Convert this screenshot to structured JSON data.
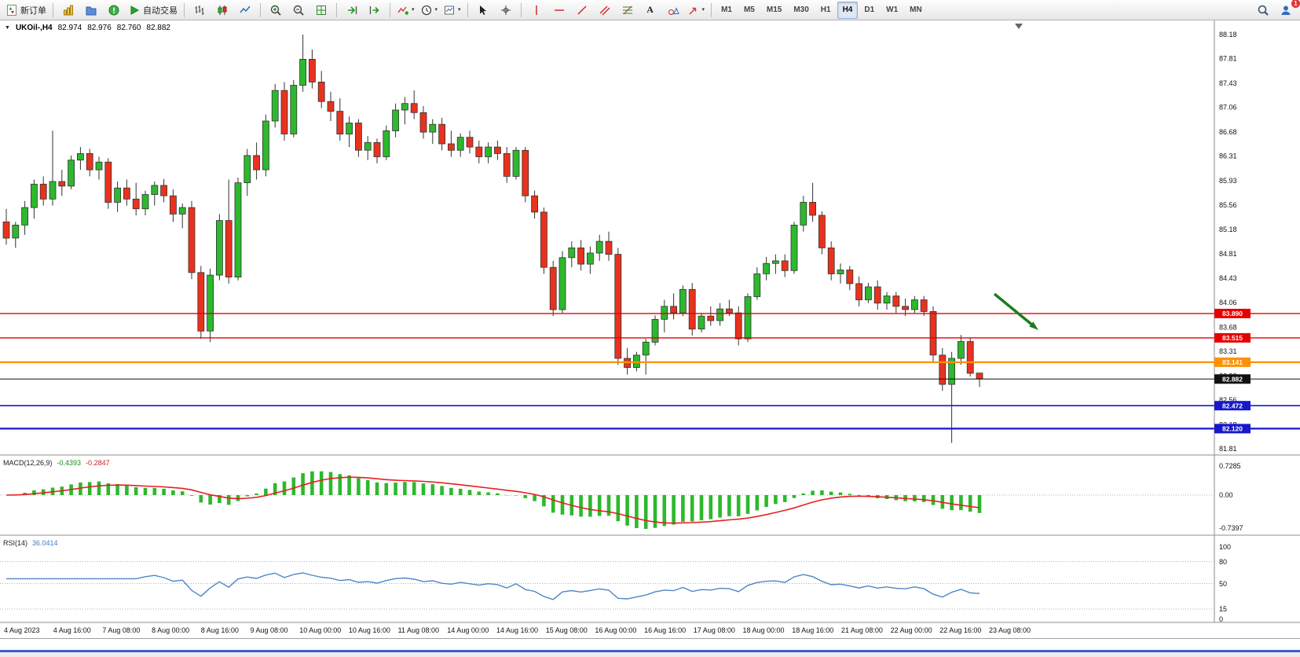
{
  "toolbar": {
    "groups": [
      {
        "items": [
          {
            "name": "new-order-button",
            "icon": "new-order-icon",
            "label": "新订单"
          }
        ]
      },
      {
        "items": [
          {
            "name": "market-watch-button",
            "icon": "market-watch-icon"
          },
          {
            "name": "navigator-button",
            "icon": "navigator-icon"
          },
          {
            "name": "terminal-button",
            "icon": "terminal-icon"
          },
          {
            "name": "auto-trading-button",
            "icon": "autotrade-play-icon",
            "label": "自动交易"
          }
        ]
      },
      {
        "items": [
          {
            "name": "bar-chart-button",
            "icon": "ohlc-bars-icon"
          },
          {
            "name": "candlestick-chart-button",
            "icon": "candlesticks-icon"
          },
          {
            "name": "line-chart-button",
            "icon": "line-chart-icon"
          }
        ]
      },
      {
        "items": [
          {
            "name": "zoom-in-button",
            "icon": "zoom-in-icon"
          },
          {
            "name": "zoom-out-button",
            "icon": "zoom-out-icon"
          },
          {
            "name": "tile-windows-button",
            "icon": "tile-windows-icon"
          }
        ]
      },
      {
        "items": [
          {
            "name": "auto-scroll-button",
            "icon": "auto-scroll-icon"
          },
          {
            "name": "chart-shift-button",
            "icon": "chart-shift-icon"
          }
        ]
      },
      {
        "items": [
          {
            "name": "indicators-button",
            "icon": "add-indicator-icon",
            "dropdown": true
          },
          {
            "name": "periods-button",
            "icon": "clock-icon",
            "dropdown": true
          },
          {
            "name": "templates-button",
            "icon": "template-icon",
            "dropdown": true
          }
        ]
      },
      {
        "items": [
          {
            "name": "cursor-button",
            "icon": "cursor-icon"
          },
          {
            "name": "crosshair-button",
            "icon": "crosshair-icon"
          }
        ]
      },
      {
        "items": [
          {
            "name": "vertical-line-button",
            "icon": "vertical-line-icon"
          },
          {
            "name": "horizontal-line-button",
            "icon": "horizontal-line-icon"
          },
          {
            "name": "trendline-button",
            "icon": "trendline-icon"
          },
          {
            "name": "channel-button",
            "icon": "channel-icon"
          },
          {
            "name": "fibonacci-button",
            "icon": "fibonacci-icon"
          },
          {
            "name": "text-button",
            "glyph": "A"
          },
          {
            "name": "shapes-button",
            "icon": "shapes-icon"
          },
          {
            "name": "arrows-button",
            "icon": "arrow-draw-icon",
            "dropdown": true
          }
        ]
      }
    ],
    "timeframes": {
      "items": [
        "M1",
        "M5",
        "M15",
        "M30",
        "H1",
        "H4",
        "D1",
        "W1",
        "MN"
      ],
      "active": "H4"
    },
    "right_items": [
      {
        "name": "search-button",
        "icon": "search-icon"
      },
      {
        "name": "account-button",
        "icon": "account-icon",
        "badge": "1"
      }
    ]
  },
  "chart": {
    "header": {
      "dropdown_glyph": "▼",
      "symbol": "UKOil-,H4",
      "open": "82.974",
      "high": "82.976",
      "low": "82.760",
      "close": "82.882"
    },
    "price_axis": [
      "88.18",
      "87.81",
      "87.43",
      "87.06",
      "86.68",
      "86.31",
      "85.93",
      "85.56",
      "85.18",
      "84.81",
      "84.43",
      "84.06",
      "83.68",
      "83.31",
      "82.93",
      "82.56",
      "82.18",
      "81.81"
    ],
    "price_lines": [
      {
        "price": 83.89,
        "label": "83.890",
        "color": "#e60000",
        "width": 1.4
      },
      {
        "price": 83.515,
        "label": "83.515",
        "color": "#e60000",
        "width": 1.4
      },
      {
        "price": 83.141,
        "label": "83.141",
        "color": "#ff9100",
        "width": 2.2
      },
      {
        "price": 82.882,
        "label": "82.882",
        "color": "#111111",
        "width": 1
      },
      {
        "price": 82.472,
        "label": "82.472",
        "color": "#1717cc",
        "width": 1.6
      },
      {
        "price": 82.12,
        "label": "82.120",
        "color": "#1717cc",
        "width": 2.2
      }
    ],
    "time_axis": [
      "4 Aug 2023",
      "4 Aug 16:00",
      "7 Aug 08:00",
      "8 Aug 00:00",
      "8 Aug 16:00",
      "9 Aug 08:00",
      "10 Aug 00:00",
      "10 Aug 16:00",
      "11 Aug 08:00",
      "14 Aug 00:00",
      "14 Aug 16:00",
      "15 Aug 08:00",
      "16 Aug 00:00",
      "16 Aug 16:00",
      "17 Aug 08:00",
      "18 Aug 00:00",
      "18 Aug 16:00",
      "21 Aug 08:00",
      "22 Aug 00:00",
      "22 Aug 16:00",
      "23 Aug 08:00"
    ],
    "annotation": {
      "shape": "arrow-down-right",
      "color": "#1e7d1e"
    }
  },
  "indicators": {
    "macd": {
      "title": "MACD(12,26,9)",
      "main_value": "-0.4393",
      "signal_value": "-0.2847",
      "axis": [
        "0.7285",
        "0.00",
        "-0.7397"
      ],
      "histogram_color": "#2db82d",
      "signal_color": "#e62020"
    },
    "rsi": {
      "title": "RSI(14)",
      "value": "36.0414",
      "axis": [
        "100",
        "80",
        "50",
        "15",
        "0"
      ],
      "levels": [
        80,
        50,
        15
      ],
      "line_color": "#4f86c6"
    }
  },
  "chart_data": {
    "type": "candlestick",
    "symbol": "UKOil-",
    "timeframe": "H4",
    "y_range": [
      81.81,
      88.18
    ],
    "last_bar_ohlc": [
      82.974,
      82.976,
      82.76,
      82.882
    ],
    "macd": {
      "params": [
        12,
        26,
        9
      ],
      "last_main": -0.4393,
      "last_signal": -0.2847
    },
    "rsi": {
      "period": 14,
      "last": 36.0414
    },
    "candles": [
      [
        85.3,
        85.5,
        84.95,
        85.05
      ],
      [
        85.05,
        85.3,
        84.9,
        85.25
      ],
      [
        85.25,
        85.62,
        85.1,
        85.52
      ],
      [
        85.52,
        85.95,
        85.35,
        85.88
      ],
      [
        85.88,
        86.0,
        85.55,
        85.65
      ],
      [
        85.65,
        86.7,
        85.55,
        85.92
      ],
      [
        85.92,
        86.1,
        85.7,
        85.85
      ],
      [
        85.85,
        86.32,
        85.8,
        86.25
      ],
      [
        86.25,
        86.45,
        86.1,
        86.35
      ],
      [
        86.35,
        86.42,
        86.0,
        86.1
      ],
      [
        86.1,
        86.3,
        85.95,
        86.22
      ],
      [
        86.22,
        86.28,
        85.5,
        85.6
      ],
      [
        85.6,
        85.92,
        85.45,
        85.82
      ],
      [
        85.82,
        85.95,
        85.55,
        85.65
      ],
      [
        85.65,
        85.9,
        85.4,
        85.5
      ],
      [
        85.5,
        85.78,
        85.4,
        85.72
      ],
      [
        85.72,
        85.92,
        85.55,
        85.86
      ],
      [
        85.86,
        85.96,
        85.6,
        85.7
      ],
      [
        85.7,
        85.8,
        85.3,
        85.42
      ],
      [
        85.42,
        85.58,
        85.2,
        85.52
      ],
      [
        85.52,
        85.62,
        84.42,
        84.52
      ],
      [
        84.52,
        84.62,
        83.5,
        83.62
      ],
      [
        83.62,
        84.58,
        83.45,
        84.48
      ],
      [
        84.48,
        85.42,
        84.4,
        85.32
      ],
      [
        85.32,
        85.95,
        84.35,
        84.45
      ],
      [
        84.45,
        85.98,
        84.4,
        85.9
      ],
      [
        85.9,
        86.42,
        85.7,
        86.32
      ],
      [
        86.32,
        86.52,
        85.95,
        86.1
      ],
      [
        86.1,
        86.95,
        86.0,
        86.85
      ],
      [
        86.85,
        87.42,
        86.75,
        87.32
      ],
      [
        87.32,
        87.45,
        86.55,
        86.65
      ],
      [
        86.65,
        87.48,
        86.6,
        87.4
      ],
      [
        87.4,
        88.18,
        87.3,
        87.8
      ],
      [
        87.8,
        87.95,
        87.35,
        87.45
      ],
      [
        87.45,
        87.62,
        87.05,
        87.15
      ],
      [
        87.15,
        87.3,
        86.85,
        87.0
      ],
      [
        87.0,
        87.2,
        86.55,
        86.65
      ],
      [
        86.65,
        86.92,
        86.45,
        86.82
      ],
      [
        86.82,
        86.88,
        86.3,
        86.4
      ],
      [
        86.4,
        86.62,
        86.25,
        86.52
      ],
      [
        86.52,
        86.58,
        86.2,
        86.3
      ],
      [
        86.3,
        86.78,
        86.25,
        86.7
      ],
      [
        86.7,
        87.12,
        86.6,
        87.02
      ],
      [
        87.02,
        87.22,
        86.8,
        87.12
      ],
      [
        87.12,
        87.32,
        86.88,
        86.98
      ],
      [
        86.98,
        87.08,
        86.58,
        86.68
      ],
      [
        86.68,
        86.88,
        86.5,
        86.8
      ],
      [
        86.8,
        86.9,
        86.4,
        86.5
      ],
      [
        86.5,
        86.7,
        86.3,
        86.4
      ],
      [
        86.4,
        86.66,
        86.3,
        86.6
      ],
      [
        86.6,
        86.7,
        86.35,
        86.45
      ],
      [
        86.45,
        86.55,
        86.2,
        86.3
      ],
      [
        86.3,
        86.52,
        86.2,
        86.45
      ],
      [
        86.45,
        86.55,
        86.25,
        86.35
      ],
      [
        86.35,
        86.45,
        85.9,
        86.0
      ],
      [
        86.0,
        86.45,
        85.95,
        86.4
      ],
      [
        86.4,
        86.45,
        85.6,
        85.7
      ],
      [
        85.7,
        85.78,
        85.35,
        85.45
      ],
      [
        85.45,
        85.52,
        84.5,
        84.6
      ],
      [
        84.6,
        84.7,
        83.85,
        83.95
      ],
      [
        83.95,
        84.85,
        83.9,
        84.75
      ],
      [
        84.75,
        85.0,
        84.6,
        84.9
      ],
      [
        84.9,
        85.02,
        84.55,
        84.65
      ],
      [
        84.65,
        84.92,
        84.5,
        84.82
      ],
      [
        84.82,
        85.1,
        84.7,
        85.0
      ],
      [
        85.0,
        85.15,
        84.7,
        84.8
      ],
      [
        84.8,
        84.9,
        83.1,
        83.2
      ],
      [
        83.2,
        83.36,
        82.95,
        83.06
      ],
      [
        83.06,
        83.3,
        83.0,
        83.25
      ],
      [
        83.25,
        83.5,
        82.95,
        83.45
      ],
      [
        83.45,
        83.86,
        83.4,
        83.8
      ],
      [
        83.8,
        84.1,
        83.6,
        84.0
      ],
      [
        84.0,
        84.2,
        83.8,
        83.9
      ],
      [
        83.9,
        84.32,
        83.85,
        84.26
      ],
      [
        84.26,
        84.36,
        83.55,
        83.65
      ],
      [
        83.65,
        83.9,
        83.6,
        83.85
      ],
      [
        83.85,
        84.0,
        83.7,
        83.78
      ],
      [
        83.78,
        84.05,
        83.7,
        83.96
      ],
      [
        83.96,
        84.1,
        83.85,
        83.9
      ],
      [
        83.9,
        84.0,
        83.4,
        83.5
      ],
      [
        83.5,
        84.2,
        83.45,
        84.15
      ],
      [
        84.15,
        84.6,
        84.1,
        84.5
      ],
      [
        84.5,
        84.76,
        84.4,
        84.66
      ],
      [
        84.66,
        84.8,
        84.5,
        84.7
      ],
      [
        84.7,
        84.8,
        84.45,
        84.55
      ],
      [
        84.55,
        85.3,
        84.5,
        85.25
      ],
      [
        85.25,
        85.7,
        85.15,
        85.6
      ],
      [
        85.6,
        85.9,
        85.3,
        85.4
      ],
      [
        85.4,
        85.46,
        84.8,
        84.9
      ],
      [
        84.9,
        85.0,
        84.4,
        84.5
      ],
      [
        84.5,
        84.66,
        84.35,
        84.56
      ],
      [
        84.56,
        84.62,
        84.25,
        84.35
      ],
      [
        84.35,
        84.46,
        84.0,
        84.1
      ],
      [
        84.1,
        84.36,
        84.05,
        84.3
      ],
      [
        84.3,
        84.4,
        83.95,
        84.05
      ],
      [
        84.05,
        84.22,
        83.95,
        84.16
      ],
      [
        84.16,
        84.22,
        83.9,
        84.0
      ],
      [
        84.0,
        84.12,
        83.85,
        83.95
      ],
      [
        83.95,
        84.16,
        83.9,
        84.1
      ],
      [
        84.1,
        84.16,
        83.85,
        83.92
      ],
      [
        83.92,
        84.0,
        83.15,
        83.25
      ],
      [
        83.25,
        83.36,
        82.7,
        82.8
      ],
      [
        82.8,
        83.3,
        81.9,
        83.2
      ],
      [
        83.2,
        83.56,
        83.1,
        83.46
      ],
      [
        83.46,
        83.52,
        82.92,
        82.97
      ],
      [
        82.974,
        82.976,
        82.76,
        82.882
      ]
    ]
  }
}
